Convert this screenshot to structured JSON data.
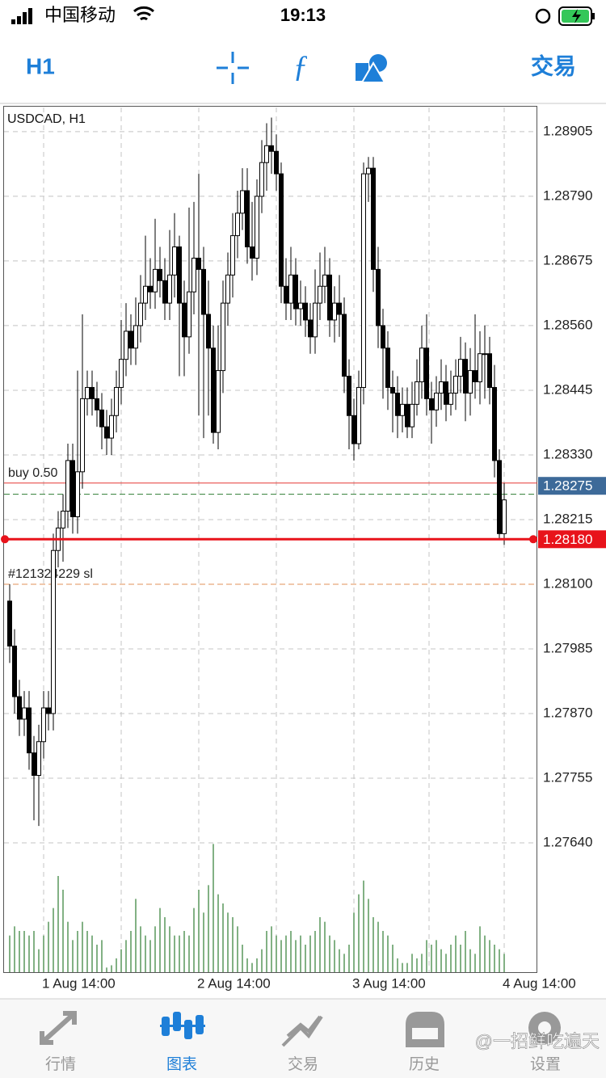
{
  "status_bar": {
    "carrier": "中国移动",
    "time": "19:13"
  },
  "toolbar": {
    "timeframe": "H1",
    "trade": "交易"
  },
  "chart_data": {
    "type": "candlestick",
    "title": "USDCAD, H1",
    "categories": [
      null,
      null,
      null,
      null,
      null,
      null,
      null,
      "1 Aug 14:00",
      null,
      null,
      null,
      null,
      null,
      null,
      null,
      null,
      null,
      null,
      null,
      null,
      null,
      null,
      null,
      null,
      null,
      null,
      null,
      null,
      null,
      null,
      null,
      null,
      null,
      null,
      null,
      null,
      null,
      null,
      null,
      "2 Aug 14:00",
      null,
      null,
      null,
      null,
      null,
      null,
      null,
      null,
      null,
      null,
      null,
      null,
      null,
      null,
      null,
      null,
      null,
      null,
      null,
      null,
      null,
      null,
      null,
      null,
      null,
      null,
      null,
      null,
      null,
      null,
      null,
      "3 Aug 14:00",
      null,
      null,
      null,
      null,
      null,
      null,
      null,
      null,
      null,
      null,
      null,
      null,
      null,
      null,
      null,
      null,
      null,
      null,
      null,
      null,
      null,
      null,
      null,
      null,
      null,
      null,
      null,
      null,
      null,
      null,
      "4 Aug 14:00"
    ],
    "open": [
      1.2807,
      1.2799,
      1.279,
      1.2786,
      1.2788,
      1.278,
      1.2776,
      1.2782,
      1.2788,
      1.2787,
      1.2816,
      1.282,
      1.2823,
      1.2832,
      1.2822,
      1.283,
      1.2843,
      1.2845,
      1.2843,
      1.2841,
      1.2838,
      1.2836,
      1.284,
      1.2845,
      1.285,
      1.2855,
      1.2852,
      1.2856,
      1.286,
      1.2863,
      1.2862,
      1.2866,
      1.2864,
      1.286,
      1.2865,
      1.287,
      1.286,
      1.2854,
      1.2862,
      1.2868,
      1.2866,
      1.2858,
      1.2852,
      1.2837,
      1.2848,
      1.286,
      1.2865,
      1.2872,
      1.2876,
      1.288,
      1.287,
      1.2868,
      1.2879,
      1.2885,
      1.2888,
      1.2887,
      1.2883,
      1.2863,
      1.286,
      1.2865,
      1.2859,
      1.286,
      1.2857,
      1.2854,
      1.286,
      1.2863,
      1.2865,
      1.2857,
      1.286,
      1.2858,
      1.2847,
      1.284,
      1.2835,
      1.2845,
      1.2883,
      1.2884,
      1.2866,
      1.2856,
      1.2852,
      1.2845,
      1.2844,
      1.284,
      1.2842,
      1.2838,
      1.2842,
      1.2846,
      1.2852,
      1.2843,
      1.2841,
      1.2844,
      1.2846,
      1.2842,
      1.2844,
      1.2847,
      1.285,
      1.2844,
      1.2848,
      1.2846,
      1.2851,
      1.2851,
      1.2845,
      1.2832,
      1.2819
    ],
    "high": [
      1.281,
      1.2802,
      1.2793,
      1.2791,
      1.2791,
      1.2783,
      1.2785,
      1.2791,
      1.2791,
      1.2819,
      1.2823,
      1.2826,
      1.2835,
      1.2835,
      1.2848,
      1.2858,
      1.2848,
      1.2848,
      1.2846,
      1.2844,
      1.2841,
      1.2843,
      1.2848,
      1.2857,
      1.286,
      1.2858,
      1.2861,
      1.2865,
      1.2872,
      1.2868,
      1.2875,
      1.287,
      1.2868,
      1.2873,
      1.2876,
      1.2872,
      1.2864,
      1.2877,
      1.2878,
      1.2883,
      1.287,
      1.2864,
      1.2856,
      1.2856,
      1.2864,
      1.2869,
      1.2876,
      1.288,
      1.2884,
      1.2884,
      1.2878,
      1.2882,
      1.2889,
      1.2892,
      1.2893,
      1.289,
      1.2885,
      1.2868,
      1.287,
      1.2868,
      1.2864,
      1.2863,
      1.286,
      1.2866,
      1.2869,
      1.287,
      1.2868,
      1.2863,
      1.2865,
      1.2861,
      1.285,
      1.2843,
      1.2848,
      1.2885,
      1.2886,
      1.2886,
      1.287,
      1.2859,
      1.2855,
      1.2848,
      1.2847,
      1.2845,
      1.2845,
      1.2846,
      1.285,
      1.2856,
      1.2858,
      1.2846,
      1.2847,
      1.285,
      1.2849,
      1.2848,
      1.285,
      1.2854,
      1.2853,
      1.2852,
      1.2858,
      1.2855,
      1.2856,
      1.2854,
      1.2849,
      1.2834,
      1.2828
    ],
    "low": [
      1.2796,
      1.2787,
      1.2783,
      1.2783,
      1.2777,
      1.2768,
      1.2767,
      1.2779,
      1.2784,
      1.2784,
      1.2813,
      1.2814,
      1.282,
      1.2819,
      1.2819,
      1.2827,
      1.284,
      1.284,
      1.2838,
      1.2834,
      1.2833,
      1.2833,
      1.2837,
      1.2842,
      1.2847,
      1.2849,
      1.2849,
      1.2853,
      1.2857,
      1.2859,
      1.2859,
      1.2861,
      1.2857,
      1.2857,
      1.2861,
      1.2847,
      1.2847,
      1.2851,
      1.2858,
      1.284,
      1.2836,
      1.284,
      1.2835,
      1.2834,
      1.2844,
      1.2856,
      1.2861,
      1.2868,
      1.2873,
      1.2867,
      1.2864,
      1.2865,
      1.2876,
      1.288,
      1.2883,
      1.288,
      1.286,
      1.2857,
      1.2857,
      1.2856,
      1.2856,
      1.2854,
      1.2851,
      1.2851,
      1.2857,
      1.286,
      1.2854,
      1.2853,
      1.2854,
      1.2844,
      1.2834,
      1.2832,
      1.2834,
      1.2842,
      1.2878,
      1.2862,
      1.2852,
      1.2843,
      1.2841,
      1.2837,
      1.2836,
      1.2837,
      1.2836,
      1.2836,
      1.284,
      1.2843,
      1.284,
      1.2835,
      1.2838,
      1.2841,
      1.2839,
      1.284,
      1.2841,
      1.2844,
      1.2839,
      1.284,
      1.2843,
      1.2842,
      1.2843,
      1.2842,
      1.2829,
      1.2818,
      1.2817
    ],
    "close": [
      1.2799,
      1.279,
      1.2786,
      1.2788,
      1.278,
      1.2776,
      1.2782,
      1.2788,
      1.2787,
      1.2816,
      1.282,
      1.2823,
      1.2832,
      1.2822,
      1.283,
      1.2843,
      1.2845,
      1.2843,
      1.2841,
      1.2838,
      1.2836,
      1.284,
      1.2845,
      1.285,
      1.2855,
      1.2852,
      1.2856,
      1.286,
      1.2863,
      1.2862,
      1.2866,
      1.2864,
      1.286,
      1.2865,
      1.287,
      1.286,
      1.2854,
      1.2862,
      1.2868,
      1.2866,
      1.2858,
      1.2852,
      1.2837,
      1.2848,
      1.286,
      1.2865,
      1.2872,
      1.2876,
      1.288,
      1.287,
      1.2868,
      1.2879,
      1.2885,
      1.2888,
      1.2887,
      1.2883,
      1.2863,
      1.286,
      1.2865,
      1.2859,
      1.286,
      1.2857,
      1.2854,
      1.286,
      1.2863,
      1.2865,
      1.2857,
      1.286,
      1.2858,
      1.2847,
      1.284,
      1.2835,
      1.2845,
      1.2883,
      1.2884,
      1.2866,
      1.2856,
      1.2852,
      1.2845,
      1.2844,
      1.284,
      1.2842,
      1.2838,
      1.2842,
      1.2846,
      1.2852,
      1.2843,
      1.2841,
      1.2844,
      1.2846,
      1.2842,
      1.2844,
      1.2847,
      1.285,
      1.2844,
      1.2848,
      1.2846,
      1.2851,
      1.2851,
      1.2845,
      1.2832,
      1.2819,
      1.2825
    ],
    "volume": [
      800,
      1000,
      900,
      900,
      800,
      900,
      500,
      800,
      1100,
      1400,
      2100,
      1800,
      1100,
      700,
      900,
      1100,
      900,
      800,
      600,
      700,
      100,
      150,
      300,
      500,
      700,
      900,
      1600,
      1000,
      800,
      700,
      1000,
      1400,
      1200,
      1000,
      800,
      800,
      900,
      800,
      1400,
      1800,
      1300,
      1900,
      2800,
      1700,
      1500,
      1300,
      1200,
      1000,
      600,
      300,
      200,
      300,
      500,
      900,
      1000,
      800,
      700,
      800,
      900,
      700,
      800,
      600,
      800,
      900,
      1200,
      1100,
      800,
      700,
      500,
      400,
      600,
      1300,
      1700,
      2000,
      1600,
      1200,
      1100,
      900,
      800,
      600,
      300,
      200,
      200,
      400,
      300,
      400,
      700,
      600,
      700,
      500,
      400,
      600,
      800,
      600,
      900,
      500,
      400,
      1000,
      800,
      700,
      600,
      500,
      400
    ],
    "vlim": [
      0,
      3000
    ],
    "ylim": [
      1.2741,
      1.28948
    ],
    "yticks": [
      1.28905,
      {
        "value": 1.2879,
        "label": "1.28790"
      },
      1.28675,
      {
        "value": 1.2856,
        "label": "1.28560"
      },
      1.28445,
      {
        "value": 1.2833,
        "label": "1.28330"
      },
      1.28215,
      {
        "value": 1.281,
        "label": "1.28100"
      },
      1.27985,
      {
        "value": 1.2787,
        "label": "1.27870"
      },
      1.27755,
      {
        "value": 1.2764,
        "label": "1.27640"
      }
    ],
    "grid": true,
    "up_color": "#ffffff",
    "down_color": "#000000",
    "volume_color": "#2e7d32",
    "levels": [
      {
        "name": "buy 0.50",
        "value": 1.2828,
        "color": "#e53935",
        "style": "solid"
      },
      {
        "value": 1.2826,
        "color": "#2e7d32",
        "style": "dashed"
      },
      {
        "name": "#121324229 sl",
        "value": 1.281,
        "color": "#e0905a",
        "style": "dashed"
      }
    ],
    "price_tags": [
      {
        "value": 1.28275,
        "color": "#3d6a99"
      },
      {
        "value": 1.2818,
        "label": "1.28180",
        "color": "#e8131b",
        "line": "solid"
      }
    ]
  },
  "tab_bar": {
    "tabs": [
      "行情",
      "图表",
      "交易",
      "历史",
      "设置"
    ],
    "active": 1
  },
  "watermark": "@一招鲜吃遍天"
}
